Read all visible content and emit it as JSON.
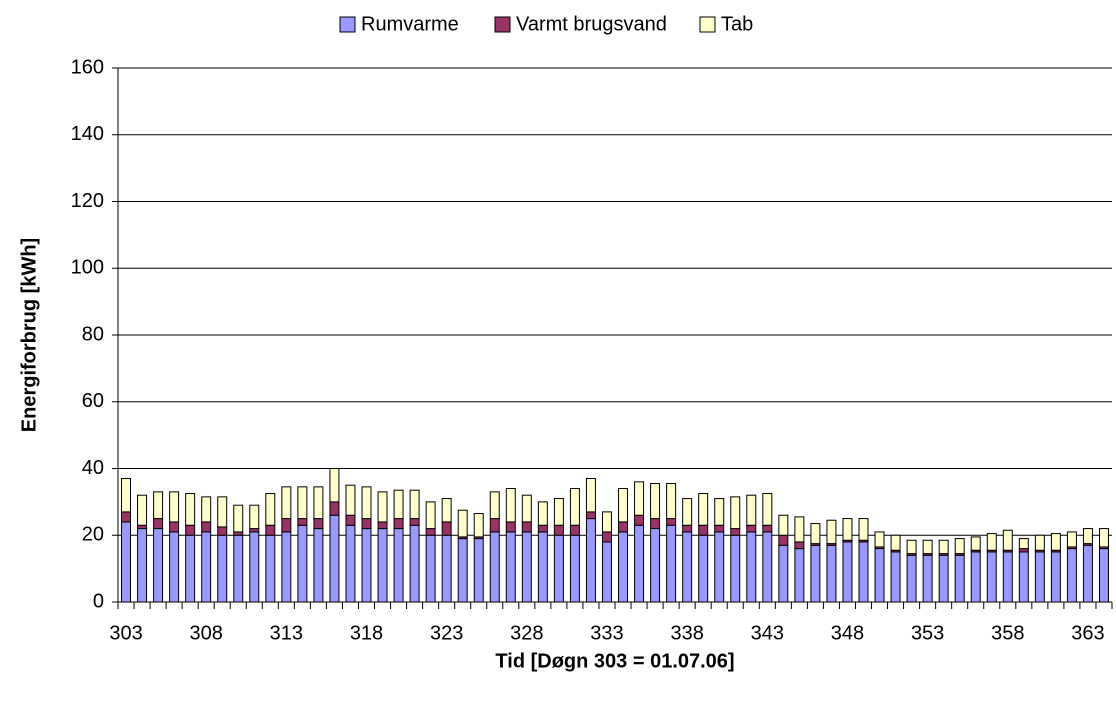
{
  "chart_data": {
    "type": "stacked_bar",
    "xlabel": "Tid [Døgn 303 = 01.07.06]",
    "ylabel": "Energiforbrug [kWh]",
    "categories": [
      "303",
      null,
      null,
      null,
      null,
      "308",
      null,
      null,
      null,
      null,
      "313",
      null,
      null,
      null,
      null,
      "318",
      null,
      null,
      null,
      null,
      "323",
      null,
      null,
      null,
      null,
      "328",
      null,
      null,
      null,
      null,
      "333",
      null,
      null,
      null,
      null,
      "338",
      null,
      null,
      null,
      null,
      "343",
      null,
      null,
      null,
      null,
      "348",
      null,
      null,
      null,
      null,
      "353",
      null,
      null,
      null,
      null,
      "358",
      null,
      null,
      null,
      null,
      "363",
      null
    ],
    "series": [
      {
        "name": "Rumvarme",
        "color": "#9999ff",
        "values": [
          24,
          22,
          22,
          21,
          20,
          21,
          20,
          20,
          21,
          20,
          21,
          23,
          22,
          26,
          23,
          22,
          22,
          22,
          23,
          20,
          20,
          19,
          19,
          21,
          21,
          21,
          21,
          20,
          20,
          25,
          18,
          21,
          23,
          22,
          23,
          21,
          20,
          21,
          20,
          21,
          21,
          17,
          16,
          17,
          17,
          18,
          18,
          16,
          15,
          14,
          14,
          14,
          14,
          15,
          15,
          15,
          15,
          15,
          15,
          16,
          17,
          16
        ]
      },
      {
        "name": "Varmt brugsvand",
        "color": "#993366",
        "values": [
          3,
          1,
          3,
          3,
          3,
          3,
          2.5,
          1,
          1,
          3,
          4,
          2,
          3,
          4,
          3,
          3,
          2,
          3,
          2,
          2,
          4,
          0.5,
          0.5,
          4,
          3,
          3,
          2,
          3,
          3,
          2,
          3,
          3,
          3,
          3,
          2,
          2,
          3,
          2,
          2,
          2,
          2,
          3,
          2,
          0.5,
          0.5,
          0.5,
          0.5,
          0.5,
          0.5,
          0.5,
          0.5,
          0.5,
          0.5,
          0.5,
          0.5,
          0.5,
          1,
          0.5,
          0.5,
          0.5,
          0.5,
          0.5
        ]
      },
      {
        "name": "Tab",
        "color": "#ffffcc",
        "values": [
          10,
          9,
          8,
          9,
          9.5,
          7.5,
          9,
          8,
          7,
          9.5,
          9.5,
          9.5,
          9.5,
          10,
          9,
          9.5,
          9,
          8.5,
          8.5,
          8,
          7,
          8,
          7,
          8,
          10,
          8,
          7,
          8,
          11,
          10,
          6,
          10,
          10,
          10.5,
          10.5,
          8,
          9.5,
          8,
          9.5,
          9,
          9.5,
          6,
          7.5,
          6,
          7,
          6.5,
          6.5,
          4.5,
          4.5,
          4,
          4,
          4,
          4.5,
          4,
          5,
          6,
          3,
          4.5,
          5,
          4.5,
          4.5,
          5.5
        ]
      }
    ],
    "ylim": [
      0,
      160
    ],
    "yticks": [
      0,
      20,
      40,
      60,
      80,
      100,
      120,
      140,
      160
    ],
    "grid": true,
    "legend": "top"
  }
}
